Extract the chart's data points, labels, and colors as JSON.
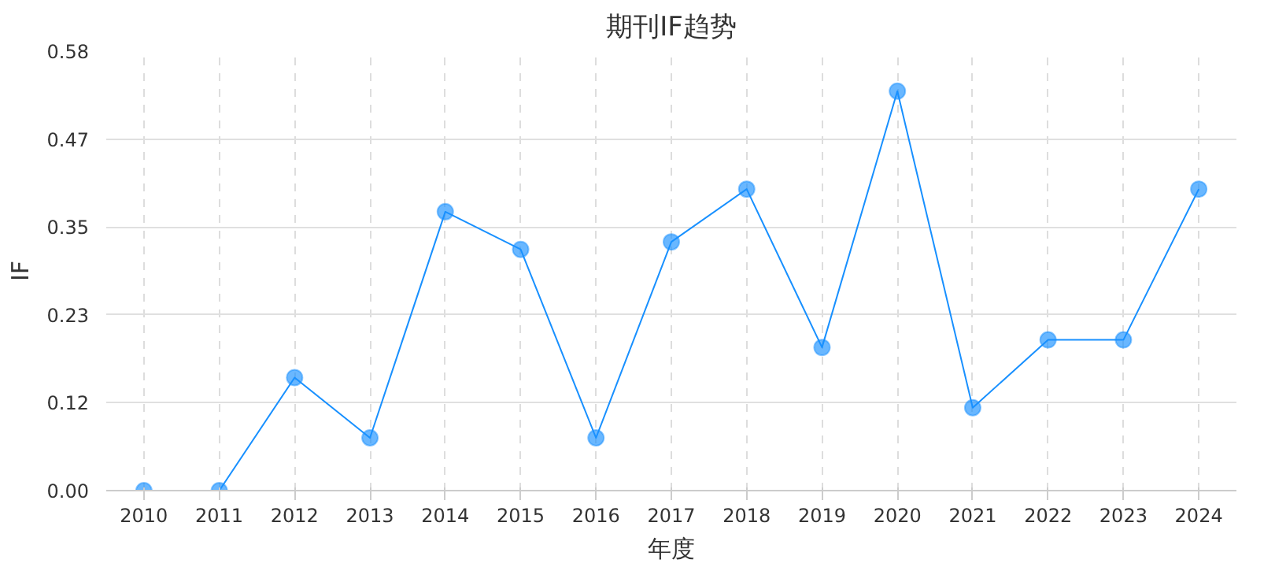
{
  "chart_data": {
    "type": "line",
    "title": "期刊IF趋势",
    "xlabel": "年度",
    "ylabel": "IF",
    "categories": [
      "2010",
      "2011",
      "2012",
      "2013",
      "2014",
      "2015",
      "2016",
      "2017",
      "2018",
      "2019",
      "2020",
      "2021",
      "2022",
      "2023",
      "2024"
    ],
    "series": [
      {
        "color": "#1890ff",
        "values": [
          0.0,
          0.0,
          0.15,
          0.07,
          0.37,
          0.32,
          0.07,
          0.33,
          0.4,
          0.19,
          0.53,
          0.11,
          0.2,
          0.2,
          0.4
        ]
      }
    ],
    "ylim": [
      0,
      0.583
    ],
    "yticks": [
      {
        "value": 0,
        "label": "0.00"
      },
      {
        "value": 0.1166,
        "label": "0.12"
      },
      {
        "value": 0.2332,
        "label": "0.23"
      },
      {
        "value": 0.3498,
        "label": "0.35"
      },
      {
        "value": 0.4664,
        "label": "0.47"
      },
      {
        "value": 0.583,
        "label": "0.58"
      }
    ],
    "grid": true,
    "marker": "circle",
    "line_style": "solid"
  }
}
